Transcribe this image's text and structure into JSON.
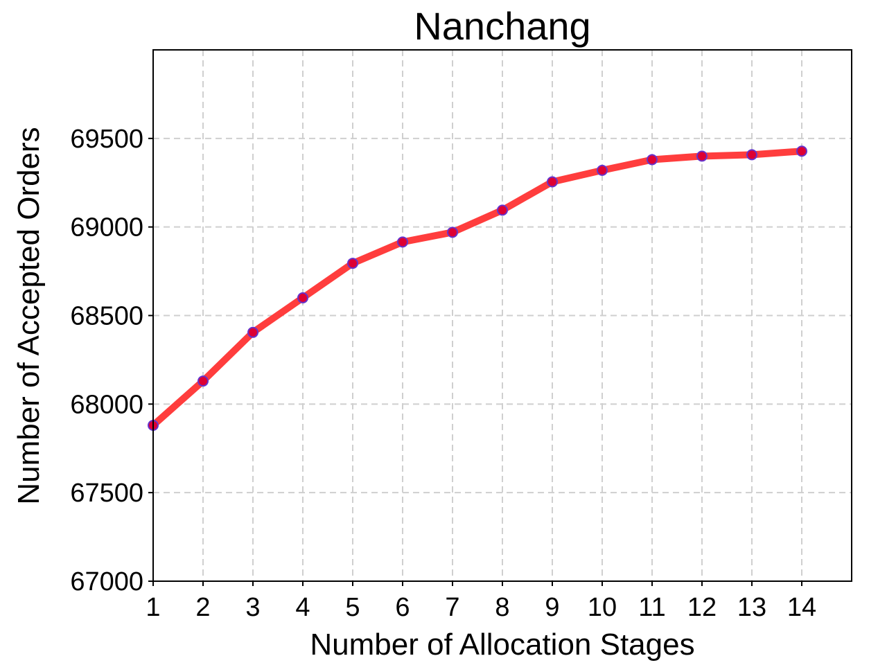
{
  "chart_data": {
    "type": "line",
    "title": "Nanchang",
    "xlabel": "Number of Allocation Stages",
    "ylabel": "Number of Accepted Orders",
    "x": [
      1,
      2,
      3,
      4,
      5,
      6,
      7,
      8,
      9,
      10,
      11,
      12,
      13,
      14
    ],
    "series": [
      {
        "values": [
          67880,
          68130,
          68405,
          68600,
          68795,
          68915,
          68970,
          69095,
          69255,
          69320,
          69380,
          69400,
          69408,
          69428
        ],
        "line_color": "#ff3333",
        "marker_face": "#dd0033",
        "marker_edge": "#6633cc"
      }
    ],
    "xlim": [
      1,
      15
    ],
    "ylim": [
      67000,
      70000
    ],
    "xticks": [
      1,
      2,
      3,
      4,
      5,
      6,
      7,
      8,
      9,
      10,
      11,
      12,
      13,
      14
    ],
    "yticks": [
      67000,
      67500,
      68000,
      68500,
      69000,
      69500
    ],
    "grid": true
  }
}
